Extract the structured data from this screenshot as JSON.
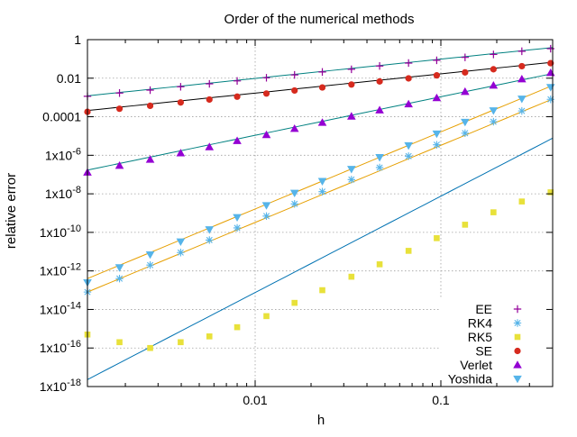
{
  "chart_data": {
    "type": "scatter",
    "title": "Order of the numerical methods",
    "xlabel": "h",
    "ylabel": "relative error",
    "x_scale": "log",
    "y_scale": "log",
    "xlim": [
      0.00125,
      0.4
    ],
    "ylim": [
      1e-18,
      1
    ],
    "grid": true,
    "legend_position": "bottom-right",
    "x_ticks": [
      {
        "value": 0.01,
        "label": "0.01"
      },
      {
        "value": 0.1,
        "label": "0.1"
      }
    ],
    "y_ticks": [
      {
        "value": 1,
        "base": "1",
        "exp": ""
      },
      {
        "value": 0.01,
        "base": "0.01",
        "exp": ""
      },
      {
        "value": 0.0001,
        "base": "0.0001",
        "exp": ""
      },
      {
        "value": 1e-06,
        "base": "1x10",
        "exp": "-6"
      },
      {
        "value": 1e-08,
        "base": "1x10",
        "exp": "-8"
      },
      {
        "value": 1e-10,
        "base": "1x10",
        "exp": "-10"
      },
      {
        "value": 1e-12,
        "base": "1x10",
        "exp": "-12"
      },
      {
        "value": 1e-14,
        "base": "1x10",
        "exp": "-14"
      },
      {
        "value": 1e-16,
        "base": "1x10",
        "exp": "-16"
      },
      {
        "value": 1e-18,
        "base": "1x10",
        "exp": "-18"
      }
    ],
    "x": [
      0.00125,
      0.00186,
      0.00272,
      0.00397,
      0.00567,
      0.008,
      0.0115,
      0.0163,
      0.023,
      0.033,
      0.0468,
      0.067,
      0.095,
      0.135,
      0.192,
      0.273,
      0.39
    ],
    "series": [
      {
        "name": "EE",
        "marker": "plus",
        "color": "#94009a",
        "values": [
          0.00115,
          0.0017,
          0.0024,
          0.0036,
          0.0051,
          0.0072,
          0.0105,
          0.0148,
          0.021,
          0.029,
          0.043,
          0.061,
          0.085,
          0.12,
          0.17,
          0.25,
          0.34
        ]
      },
      {
        "name": "RK4",
        "marker": "star",
        "color": "#56b4e9",
        "values": [
          8e-14,
          4e-13,
          2e-12,
          9e-12,
          4e-11,
          1.7e-10,
          7e-10,
          3e-09,
          1.3e-08,
          5.5e-08,
          2.3e-07,
          9e-07,
          3.5e-06,
          1.4e-05,
          5.5e-05,
          0.0002,
          0.0008
        ]
      },
      {
        "name": "RK5",
        "marker": "square",
        "color": "#e8e13a",
        "values": [
          5e-16,
          2e-16,
          1e-16,
          2e-16,
          4e-16,
          1.2e-15,
          4.5e-15,
          2.2e-14,
          1e-13,
          5e-13,
          2.2e-12,
          1.1e-11,
          5e-11,
          2.5e-10,
          1.1e-09,
          4e-09,
          1.2e-08
        ]
      },
      {
        "name": "SE",
        "marker": "circle",
        "color": "#d62a1e",
        "values": [
          0.00018,
          0.00026,
          0.00037,
          0.00055,
          0.00078,
          0.0011,
          0.0016,
          0.0023,
          0.0033,
          0.0047,
          0.0068,
          0.0098,
          0.014,
          0.02,
          0.029,
          0.042,
          0.06
        ]
      },
      {
        "name": "Verlet",
        "marker": "triangle-up",
        "color": "#9400d3",
        "values": [
          1.3e-07,
          2.9e-07,
          6e-07,
          1.3e-06,
          2.7e-06,
          5.6e-06,
          1.15e-05,
          2.4e-05,
          5e-05,
          0.000105,
          0.00022,
          0.00045,
          0.00095,
          0.002,
          0.0042,
          0.009,
          0.019
        ]
      },
      {
        "name": "Yoshida",
        "marker": "triangle-down",
        "color": "#56b4e9",
        "values": [
          2.5e-13,
          1.5e-12,
          7e-12,
          3.3e-11,
          1.4e-10,
          6e-10,
          2.5e-09,
          1.1e-08,
          4.5e-08,
          1.9e-07,
          7.8e-07,
          3.2e-06,
          1.3e-05,
          5.3e-05,
          0.00021,
          0.00085,
          0.0034
        ]
      }
    ],
    "fit_lines": [
      {
        "series": "EE",
        "color": "#008080",
        "slope": 1,
        "y_at_x0": 0.00122
      },
      {
        "series": "SE",
        "color": "#000000",
        "slope": 1,
        "y_at_x0": 0.00021
      },
      {
        "series": "Verlet",
        "color": "#008080",
        "slope": 2,
        "y_at_x0": 1.7e-07
      },
      {
        "series": "RK4",
        "color": "#e69f00",
        "slope": 4,
        "y_at_x0": 8e-14
      },
      {
        "series": "Yoshida",
        "color": "#e69f00",
        "slope": 4,
        "y_at_x0": 4e-13
      },
      {
        "series": "RK5",
        "color": "#0072b2",
        "slope": 5,
        "y_at_x0": 2.3e-18
      }
    ]
  }
}
